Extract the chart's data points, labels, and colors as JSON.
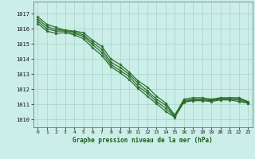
{
  "title": "Graphe pression niveau de la mer (hPa)",
  "background_color": "#cceee8",
  "grid_color": "#aad8cc",
  "line_color": "#2d6e2d",
  "marker_color": "#2d6e2d",
  "xlim": [
    -0.5,
    23.5
  ],
  "ylim": [
    1009.5,
    1017.8
  ],
  "yticks": [
    1010,
    1011,
    1012,
    1013,
    1014,
    1015,
    1016,
    1017
  ],
  "xticks": [
    0,
    1,
    2,
    3,
    4,
    5,
    6,
    7,
    8,
    9,
    10,
    11,
    12,
    13,
    14,
    15,
    16,
    17,
    18,
    19,
    20,
    21,
    22,
    23
  ],
  "series": [
    [
      1016.8,
      1016.3,
      1016.1,
      1015.9,
      1015.85,
      1015.75,
      1015.25,
      1014.85,
      1014.0,
      1013.65,
      1013.15,
      1012.55,
      1012.15,
      1011.55,
      1011.1,
      1010.3,
      1011.35,
      1011.45,
      1011.45,
      1011.35,
      1011.45,
      1011.45,
      1011.45,
      1011.2
    ],
    [
      1016.65,
      1016.15,
      1015.95,
      1015.9,
      1015.8,
      1015.6,
      1015.1,
      1014.65,
      1013.8,
      1013.45,
      1013.0,
      1012.4,
      1011.9,
      1011.35,
      1010.95,
      1010.25,
      1011.25,
      1011.35,
      1011.35,
      1011.3,
      1011.4,
      1011.4,
      1011.4,
      1011.15
    ],
    [
      1016.5,
      1016.0,
      1015.85,
      1015.85,
      1015.7,
      1015.5,
      1014.95,
      1014.45,
      1013.65,
      1013.25,
      1012.85,
      1012.2,
      1011.75,
      1011.2,
      1010.75,
      1010.2,
      1011.2,
      1011.3,
      1011.3,
      1011.25,
      1011.35,
      1011.35,
      1011.3,
      1011.1
    ],
    [
      1016.35,
      1015.85,
      1015.7,
      1015.75,
      1015.6,
      1015.35,
      1014.75,
      1014.25,
      1013.5,
      1013.1,
      1012.65,
      1012.05,
      1011.55,
      1011.05,
      1010.55,
      1010.15,
      1011.15,
      1011.25,
      1011.25,
      1011.2,
      1011.3,
      1011.3,
      1011.2,
      1011.1
    ]
  ]
}
